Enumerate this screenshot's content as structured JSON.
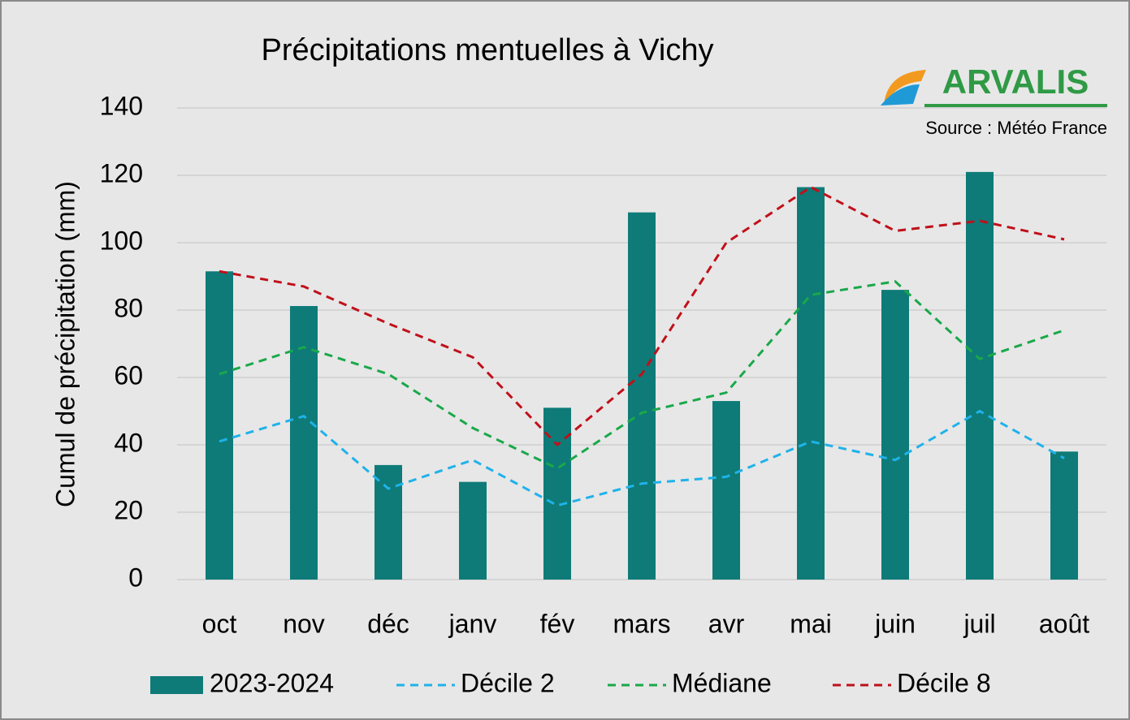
{
  "chart_data": {
    "type": "bar",
    "title": "Précipitations mentuelles à Vichy",
    "logo": "ARVALIS",
    "source": "Source : Météo France",
    "y_label": "Cumul de précipitation (mm)",
    "categories": [
      "oct",
      "nov",
      "déc",
      "janv",
      "fév",
      "mars",
      "avr",
      "mai",
      "juin",
      "juil",
      "août"
    ],
    "series": [
      {
        "name": "2023-2024",
        "type": "bar",
        "color": "#0e7b78",
        "values": [
          91.5,
          81.2,
          34,
          29,
          51,
          109,
          53,
          116.5,
          86,
          121,
          38
        ]
      },
      {
        "name": "Décile 2",
        "type": "line",
        "dashed": true,
        "color": "#1fb2ea",
        "values": [
          41,
          48.5,
          27,
          35.5,
          22,
          28.5,
          30.5,
          41,
          35.5,
          50,
          36
        ]
      },
      {
        "name": "Médiane",
        "type": "line",
        "dashed": true,
        "color": "#1aa84a",
        "values": [
          61,
          69,
          61,
          45,
          33,
          49.5,
          55.5,
          84.5,
          88.5,
          65.5,
          74
        ]
      },
      {
        "name": "Décile 8",
        "type": "line",
        "dashed": true,
        "color": "#c0101a",
        "values": [
          91.5,
          87,
          76,
          66,
          40,
          61,
          100,
          116.5,
          103.5,
          106.5,
          101
        ]
      }
    ],
    "ylim": [
      0,
      140
    ],
    "yticks": [
      0,
      20,
      40,
      60,
      80,
      100,
      120,
      140
    ],
    "grid": true,
    "legend": "bottom"
  }
}
